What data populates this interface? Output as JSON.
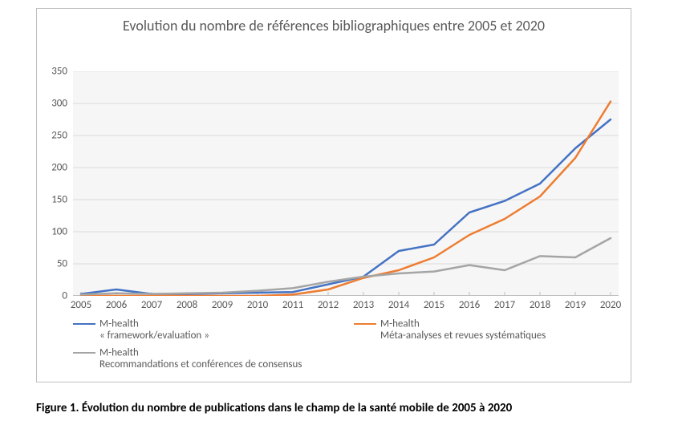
{
  "chart": {
    "type": "line",
    "title": "Evolution du nombre de références bibliographiques entre 2005 et 2020",
    "title_fontsize": 18,
    "title_color": "#595959",
    "background_color": "#ffffff",
    "plot_background_color": "#f6f6f6",
    "border_color": "#bfbfbf",
    "grid_color": "#d9d9d9",
    "axis_line_color": "#bfbfbf",
    "tick_label_color": "#595959",
    "tick_fontsize": 13,
    "x": {
      "categories": [
        "2005",
        "2006",
        "2007",
        "2008",
        "2009",
        "2010",
        "2011",
        "2012",
        "2013",
        "2014",
        "2015",
        "2016",
        "2017",
        "2018",
        "2019",
        "2020"
      ]
    },
    "y": {
      "min": 0,
      "max": 350,
      "tick_step": 50,
      "ticks": [
        0,
        50,
        100,
        150,
        200,
        250,
        300,
        350
      ]
    },
    "series": [
      {
        "name": "M-health « framework/evaluation »",
        "legend_main": "M-health",
        "legend_sub": "« framework/evaluation »",
        "color": "#4472c4",
        "line_width": 2.5,
        "values": [
          3,
          10,
          3,
          3,
          4,
          5,
          6,
          18,
          30,
          70,
          80,
          130,
          148,
          175,
          230,
          275
        ]
      },
      {
        "name": "M-health Méta-analyses et revues systématiques",
        "legend_main": "M-health",
        "legend_sub": "Méta-analyses et revues systématiques",
        "color": "#ed7d31",
        "line_width": 2.5,
        "values": [
          0,
          0,
          0,
          0,
          0,
          0,
          2,
          10,
          28,
          40,
          60,
          95,
          120,
          155,
          215,
          303
        ]
      },
      {
        "name": "M-health Recommandations et conférences de consensus",
        "legend_main": "M-health",
        "legend_sub": "Recommandations et conférences de consensus",
        "color": "#a5a5a5",
        "line_width": 2.5,
        "values": [
          2,
          4,
          3,
          4,
          5,
          8,
          12,
          22,
          30,
          35,
          38,
          48,
          40,
          62,
          60,
          90
        ]
      }
    ],
    "legend_fontsize": 13,
    "legend_color": "#595959"
  },
  "caption": "Figure 1. Évolution du nombre de publications dans le champ de la santé mobile de 2005 à 2020",
  "caption_fontsize": 15,
  "caption_fontweight": 700
}
